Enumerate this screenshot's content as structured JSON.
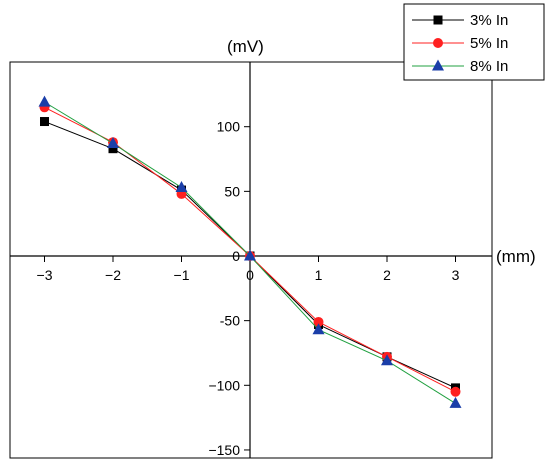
{
  "chart_data": {
    "type": "line",
    "x_unit": "(mm)",
    "y_unit": "(mV)",
    "x": [
      -3,
      -2,
      -1,
      0,
      1,
      2,
      3
    ],
    "x_ticks": [
      -3,
      -2,
      -1,
      0,
      1,
      2,
      3
    ],
    "x_tick_labels": [
      "−3",
      "−2",
      "−1",
      "0",
      "1",
      "2",
      "3"
    ],
    "y_ticks": [
      -150,
      -100,
      -50,
      0,
      50,
      100
    ],
    "y_tick_labels": [
      "−150",
      "−100",
      "-50",
      "0",
      "50",
      "100"
    ],
    "xlim": [
      -3.6,
      3.6
    ],
    "ylim": [
      -150,
      145
    ],
    "grid": false,
    "legend_position": "top-right",
    "series": [
      {
        "name": "3% In",
        "color": "#000000",
        "marker": "square",
        "values": [
          104,
          83,
          51,
          0,
          -53,
          -78,
          -102
        ]
      },
      {
        "name": "5% In",
        "color": "#ff2020",
        "marker": "circle",
        "values": [
          115,
          88,
          48,
          0,
          -51,
          -78,
          -105
        ]
      },
      {
        "name": "8% In",
        "color": "#1a3ea8",
        "marker": "triangle",
        "line_color": "#20a040",
        "values": [
          119,
          87,
          53,
          0,
          -57,
          -81,
          -114
        ]
      }
    ]
  }
}
